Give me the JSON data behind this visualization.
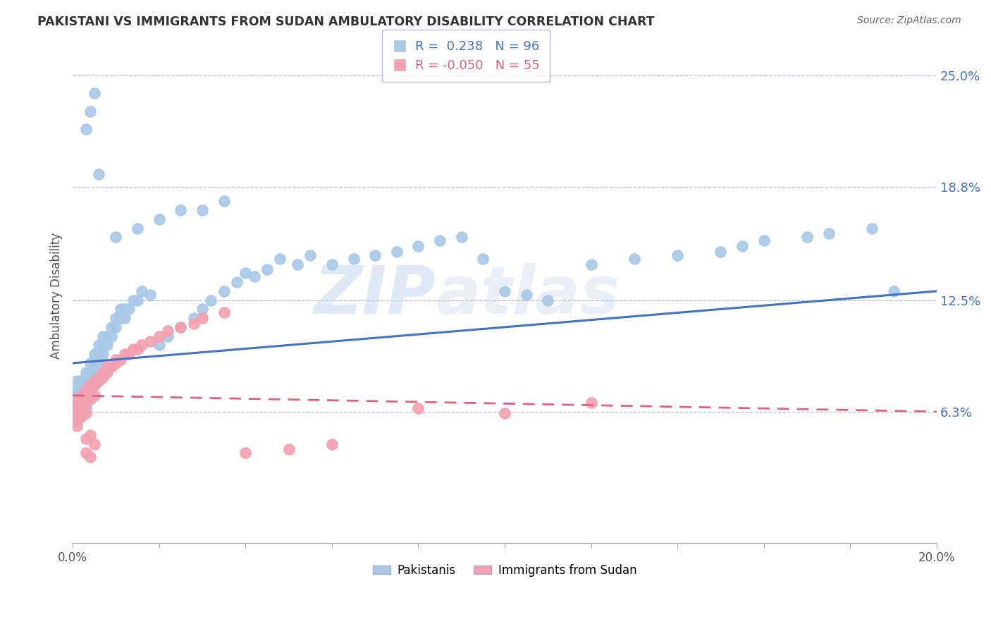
{
  "title": "PAKISTANI VS IMMIGRANTS FROM SUDAN AMBULATORY DISABILITY CORRELATION CHART",
  "source": "Source: ZipAtlas.com",
  "ylabel": "Ambulatory Disability",
  "xlim": [
    0.0,
    0.2
  ],
  "ylim": [
    -0.01,
    0.265
  ],
  "ytick_vals": [
    0.063,
    0.125,
    0.188,
    0.25
  ],
  "ytick_labels": [
    "6.3%",
    "12.5%",
    "18.8%",
    "25.0%"
  ],
  "xtick_vals": [
    0.0,
    0.02,
    0.04,
    0.06,
    0.08,
    0.1,
    0.12,
    0.14,
    0.16,
    0.18,
    0.2
  ],
  "xtick_labels_show": {
    "0.0": "0.0%",
    "0.20": "20.0%"
  },
  "pakistani_color": "#a8c8e8",
  "sudan_color": "#f4a0b0",
  "trend_blue": "#4472c4",
  "trend_pink": "#e06080",
  "R_pakistani": 0.238,
  "N_pakistani": 96,
  "R_sudan": -0.05,
  "N_sudan": 55,
  "blue_trend_x0": 0.0,
  "blue_trend_y0": 0.09,
  "blue_trend_x1": 0.2,
  "blue_trend_y1": 0.13,
  "pink_trend_x0": 0.0,
  "pink_trend_y0": 0.072,
  "pink_trend_x1": 0.2,
  "pink_trend_y1": 0.063,
  "pak_x": [
    0.001,
    0.001,
    0.001,
    0.001,
    0.001,
    0.001,
    0.001,
    0.001,
    0.001,
    0.002,
    0.002,
    0.002,
    0.002,
    0.002,
    0.002,
    0.002,
    0.003,
    0.003,
    0.003,
    0.003,
    0.003,
    0.003,
    0.004,
    0.004,
    0.004,
    0.004,
    0.005,
    0.005,
    0.005,
    0.005,
    0.006,
    0.006,
    0.006,
    0.007,
    0.007,
    0.007,
    0.008,
    0.008,
    0.009,
    0.009,
    0.01,
    0.01,
    0.011,
    0.011,
    0.012,
    0.012,
    0.013,
    0.014,
    0.015,
    0.016,
    0.018,
    0.02,
    0.022,
    0.025,
    0.028,
    0.03,
    0.032,
    0.035,
    0.038,
    0.04,
    0.042,
    0.045,
    0.048,
    0.052,
    0.055,
    0.06,
    0.065,
    0.07,
    0.075,
    0.08,
    0.085,
    0.09,
    0.095,
    0.1,
    0.105,
    0.11,
    0.12,
    0.13,
    0.14,
    0.15,
    0.155,
    0.16,
    0.17,
    0.175,
    0.185,
    0.19,
    0.01,
    0.015,
    0.02,
    0.025,
    0.03,
    0.035,
    0.003,
    0.004,
    0.005,
    0.006
  ],
  "pak_y": [
    0.068,
    0.072,
    0.075,
    0.078,
    0.08,
    0.063,
    0.065,
    0.06,
    0.058,
    0.07,
    0.075,
    0.08,
    0.065,
    0.068,
    0.072,
    0.062,
    0.075,
    0.08,
    0.085,
    0.068,
    0.072,
    0.065,
    0.08,
    0.085,
    0.09,
    0.072,
    0.085,
    0.09,
    0.095,
    0.078,
    0.09,
    0.095,
    0.1,
    0.095,
    0.1,
    0.105,
    0.1,
    0.105,
    0.105,
    0.11,
    0.11,
    0.115,
    0.115,
    0.12,
    0.115,
    0.12,
    0.12,
    0.125,
    0.125,
    0.13,
    0.128,
    0.1,
    0.105,
    0.11,
    0.115,
    0.12,
    0.125,
    0.13,
    0.135,
    0.14,
    0.138,
    0.142,
    0.148,
    0.145,
    0.15,
    0.145,
    0.148,
    0.15,
    0.152,
    0.155,
    0.158,
    0.16,
    0.148,
    0.13,
    0.128,
    0.125,
    0.145,
    0.148,
    0.15,
    0.152,
    0.155,
    0.158,
    0.16,
    0.162,
    0.165,
    0.13,
    0.16,
    0.165,
    0.17,
    0.175,
    0.175,
    0.18,
    0.22,
    0.23,
    0.24,
    0.195
  ],
  "sud_x": [
    0.001,
    0.001,
    0.001,
    0.001,
    0.001,
    0.001,
    0.001,
    0.002,
    0.002,
    0.002,
    0.002,
    0.002,
    0.003,
    0.003,
    0.003,
    0.003,
    0.004,
    0.004,
    0.004,
    0.005,
    0.005,
    0.005,
    0.006,
    0.006,
    0.007,
    0.007,
    0.008,
    0.008,
    0.009,
    0.01,
    0.01,
    0.011,
    0.012,
    0.013,
    0.014,
    0.015,
    0.016,
    0.018,
    0.02,
    0.022,
    0.025,
    0.028,
    0.03,
    0.035,
    0.04,
    0.05,
    0.06,
    0.08,
    0.1,
    0.12,
    0.003,
    0.004,
    0.005,
    0.003,
    0.004
  ],
  "sud_y": [
    0.065,
    0.068,
    0.07,
    0.06,
    0.062,
    0.055,
    0.058,
    0.068,
    0.07,
    0.072,
    0.065,
    0.06,
    0.072,
    0.075,
    0.068,
    0.062,
    0.075,
    0.078,
    0.07,
    0.078,
    0.08,
    0.072,
    0.08,
    0.082,
    0.082,
    0.085,
    0.085,
    0.088,
    0.088,
    0.09,
    0.092,
    0.092,
    0.095,
    0.095,
    0.098,
    0.098,
    0.1,
    0.102,
    0.105,
    0.108,
    0.11,
    0.112,
    0.115,
    0.118,
    0.04,
    0.042,
    0.045,
    0.065,
    0.062,
    0.068,
    0.048,
    0.05,
    0.045,
    0.04,
    0.038
  ]
}
